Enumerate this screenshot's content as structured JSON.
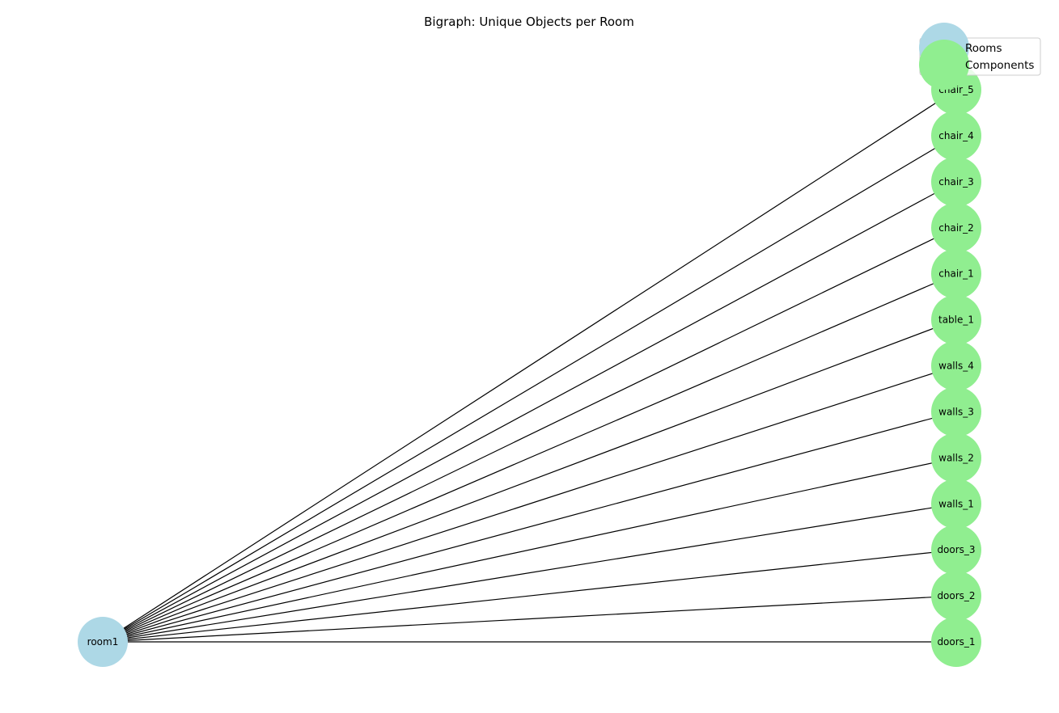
{
  "title": "Bigraph: Unique Objects per Room",
  "colors": {
    "room": "#add8e6",
    "component": "#90ee90",
    "edge": "#000000"
  },
  "legend": {
    "rooms": "Rooms",
    "components": "Components"
  },
  "room": "room1",
  "components": [
    "chair_5",
    "chair_4",
    "chair_3",
    "chair_2",
    "chair_1",
    "table_1",
    "walls_4",
    "walls_3",
    "walls_2",
    "walls_1",
    "doors_3",
    "doors_2",
    "doors_1"
  ]
}
